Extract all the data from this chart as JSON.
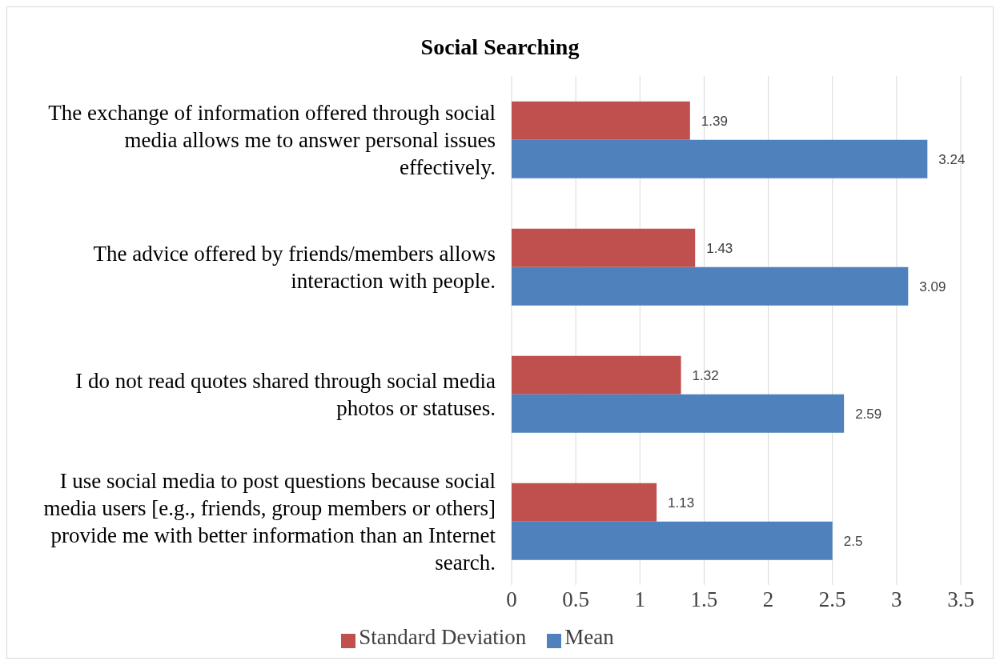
{
  "chart_data": {
    "type": "bar",
    "orientation": "horizontal",
    "title": "Social Searching",
    "categories": [
      "The exchange of information offered through social media allows me to answer personal issues effectively.",
      "The advice offered by friends/members allows interaction with people.",
      "I do not read quotes shared through social media photos or statuses.",
      "I use social media to post questions because social media users [e.g., friends, group members or others] provide me with better information than an Internet search."
    ],
    "series": [
      {
        "name": "Standard Deviation",
        "color": "#c0504d",
        "values": [
          1.39,
          1.43,
          1.32,
          1.13
        ]
      },
      {
        "name": "Mean",
        "color": "#4f81bd",
        "values": [
          3.24,
          3.09,
          2.59,
          2.5
        ]
      }
    ],
    "xlim": [
      0,
      3.5
    ],
    "xticks": [
      0,
      0.5,
      1,
      1.5,
      2,
      2.5,
      3,
      3.5
    ],
    "grid": "x",
    "legend": "bottom",
    "data_labels": true
  }
}
